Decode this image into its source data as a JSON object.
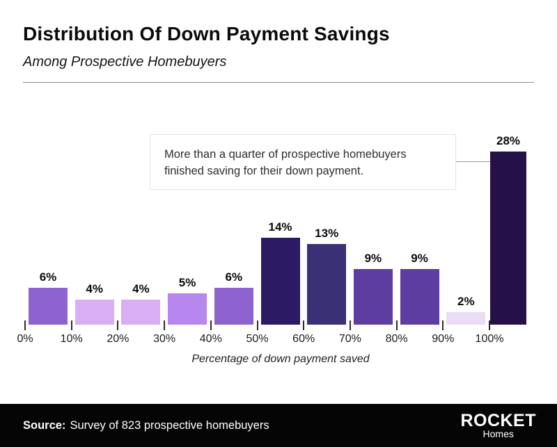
{
  "header": {
    "title": "Distribution Of Down Payment Savings",
    "subtitle": "Among Prospective Homebuyers"
  },
  "chart_data": {
    "type": "bar",
    "title": "Distribution Of Down Payment Savings",
    "subtitle": "Among Prospective Homebuyers",
    "xlabel": "Percentage of down payment saved",
    "ylabel": "",
    "x_tick_labels": [
      "0%",
      "10%",
      "20%",
      "30%",
      "40%",
      "50%",
      "60%",
      "70%",
      "80%",
      "90%",
      "100%"
    ],
    "categories": [
      "0-10%",
      "10-20%",
      "20-30%",
      "30-40%",
      "40-50%",
      "50-60%",
      "60-70%",
      "70-80%",
      "80-90%",
      "90-100%",
      "100%+"
    ],
    "values": [
      6,
      4,
      4,
      5,
      6,
      14,
      13,
      9,
      9,
      2,
      28
    ],
    "value_labels": [
      "6%",
      "4%",
      "4%",
      "5%",
      "6%",
      "14%",
      "13%",
      "9%",
      "9%",
      "2%",
      "28%"
    ],
    "bar_colors": [
      "#8F63CF",
      "#DAAEF3",
      "#DAAEF3",
      "#B886EF",
      "#8F63CF",
      "#2D1A64",
      "#3A3076",
      "#5E3DA0",
      "#5E3DA0",
      "#EADCF7",
      "#251147"
    ],
    "ylim": [
      0,
      30
    ],
    "grid": false,
    "legend": false,
    "annotation": "More than a quarter of prospective homebuyers finished saving for their down payment."
  },
  "footer": {
    "source_label": "Source:",
    "source_text": "Survey of 823 prospective homebuyers",
    "brand": {
      "name": "ROCKET",
      "sub": "Homes"
    }
  }
}
